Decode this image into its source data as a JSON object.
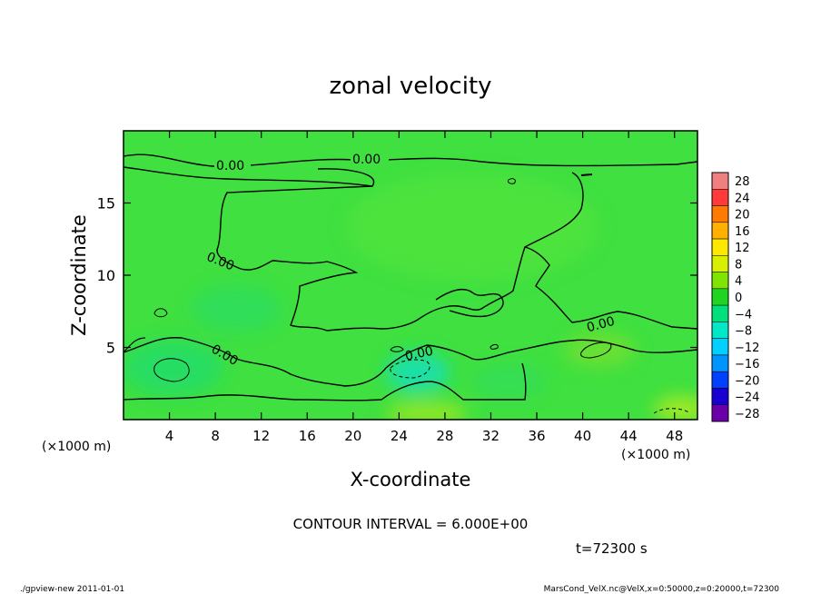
{
  "chart_data": {
    "type": "heatmap",
    "title": "zonal velocity",
    "xlabel": "X-coordinate",
    "ylabel": "Z-coordinate",
    "x_unit_left": "(×1000 m)",
    "x_unit_right": "(×1000 m)",
    "xlim": [
      0,
      50
    ],
    "ylim": [
      0,
      20
    ],
    "x_ticks": [
      4,
      8,
      12,
      16,
      20,
      24,
      28,
      32,
      36,
      40,
      44,
      48
    ],
    "y_ticks": [
      5,
      10,
      15
    ],
    "colorbar": {
      "levels": [
        28,
        24,
        20,
        16,
        12,
        8,
        4,
        0,
        -4,
        -8,
        -12,
        -16,
        -20,
        -24,
        -28
      ],
      "colors": [
        "#f08080",
        "#ff3a3a",
        "#ff7a00",
        "#ffb000",
        "#ffe800",
        "#d8f000",
        "#7fe400",
        "#22d422",
        "#00e07a",
        "#00e8c8",
        "#00d0ff",
        "#0094ff",
        "#0040ff",
        "#1800d0",
        "#6a00a8"
      ]
    },
    "contour_labels": [
      "0.00",
      "0.00",
      "0.00",
      "0.00",
      "0.00",
      "0.00"
    ],
    "contour_interval_label": "CONTOUR INTERVAL = 6.000E+00",
    "time_label": "t=72300 s"
  },
  "footer": {
    "left": "./gpview-new   2011-01-01",
    "right": "MarsCond_VelX.nc@VelX,x=0:50000,z=0:20000,t=72300"
  }
}
